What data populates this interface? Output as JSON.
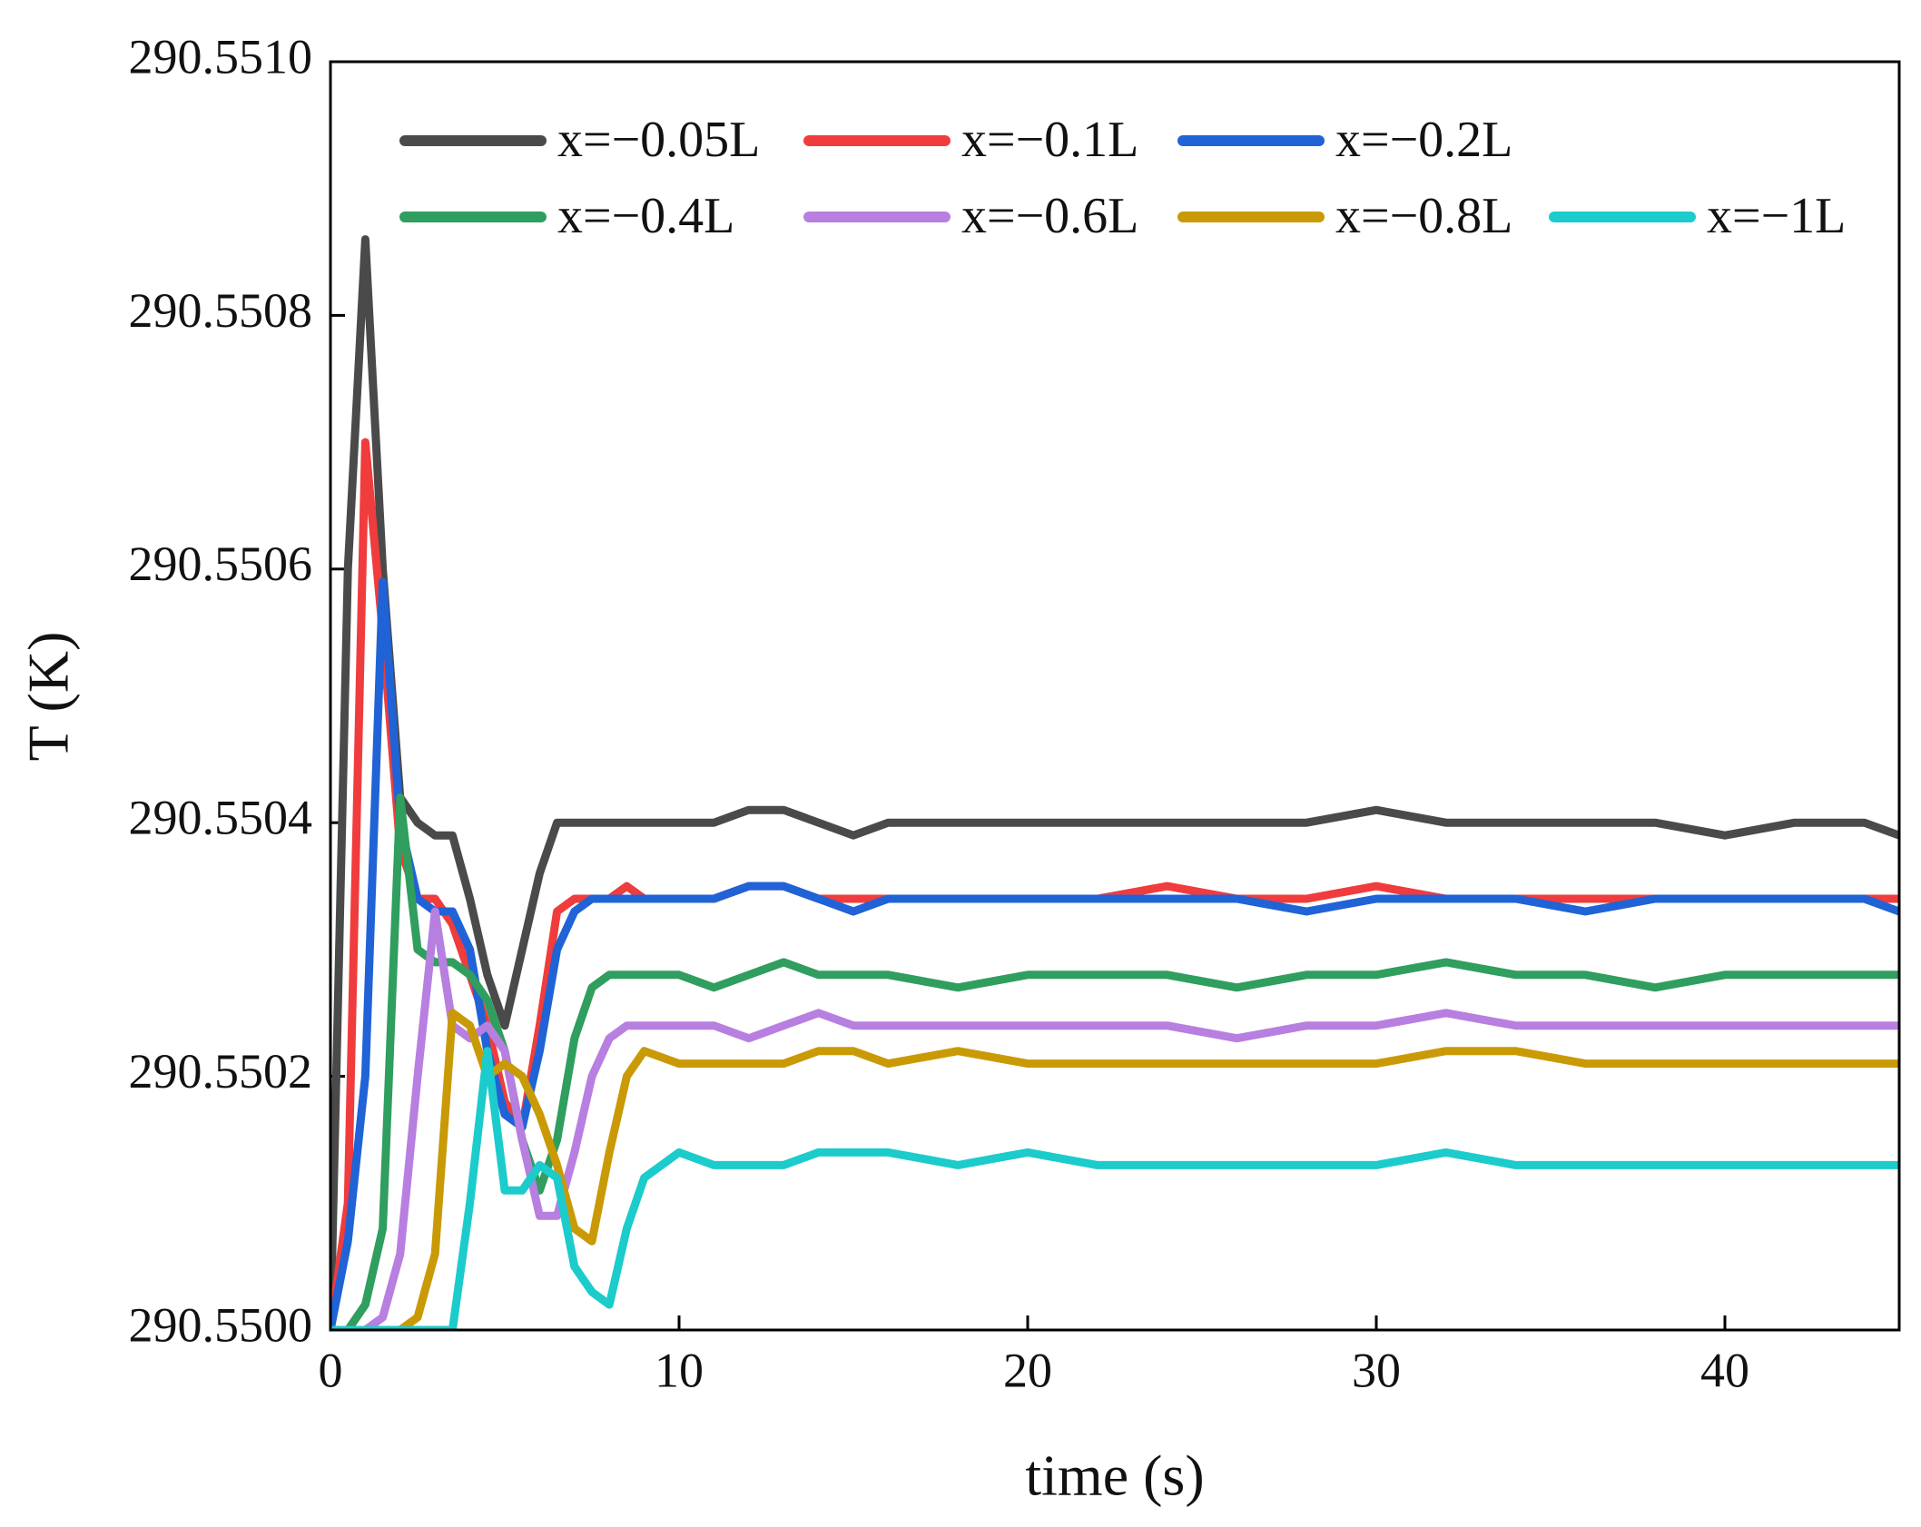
{
  "chart_data": {
    "type": "line",
    "xlabel": "time (s)",
    "ylabel": "T (K)",
    "x": [
      0,
      0.5,
      1,
      1.5,
      2,
      2.5,
      3,
      3.5,
      4,
      4.5,
      5,
      5.5,
      6,
      6.5,
      7,
      7.5,
      8,
      8.5,
      9,
      10,
      11,
      12,
      13,
      14,
      15,
      16,
      18,
      20,
      22,
      24,
      26,
      28,
      30,
      32,
      34,
      36,
      38,
      40,
      42,
      44,
      45
    ],
    "xlim": [
      0,
      45
    ],
    "xticks": [
      0,
      10,
      20,
      30,
      40
    ],
    "ylim": [
      290.55,
      290.551
    ],
    "yticks": [
      {
        "value": 290.55,
        "label": "290.5500"
      },
      {
        "value": 290.5502,
        "label": "290.5502"
      },
      {
        "value": 290.5504,
        "label": "290.5504"
      },
      {
        "value": 290.5506,
        "label": "290.5506"
      },
      {
        "value": 290.5508,
        "label": "290.5508"
      },
      {
        "value": 290.551,
        "label": "290.5510"
      }
    ],
    "legend": "upper left",
    "series": [
      {
        "name": "x=−0.05L",
        "color": "#4a4a4a",
        "values": [
          290.55,
          290.5506,
          290.55086,
          290.5506,
          290.55042,
          290.5504,
          290.55039,
          290.55039,
          290.55034,
          290.55028,
          290.55024,
          290.5503,
          290.55036,
          290.5504,
          290.5504,
          290.5504,
          290.5504,
          290.5504,
          290.5504,
          290.5504,
          290.5504,
          290.55041,
          290.55041,
          290.5504,
          290.55039,
          290.5504,
          290.5504,
          290.5504,
          290.5504,
          290.5504,
          290.5504,
          290.5504,
          290.55041,
          290.5504,
          290.5504,
          290.5504,
          290.5504,
          290.55039,
          290.5504,
          290.5504,
          290.55039
        ]
      },
      {
        "name": "x=−0.1L",
        "color": "#f03c3c",
        "values": [
          290.55,
          290.5501,
          290.5507,
          290.55055,
          290.55038,
          290.55034,
          290.55034,
          290.55032,
          290.55028,
          290.55024,
          290.55018,
          290.55016,
          290.55024,
          290.55033,
          290.55034,
          290.55034,
          290.55034,
          290.55035,
          290.55034,
          290.55034,
          290.55034,
          290.55035,
          290.55035,
          290.55034,
          290.55034,
          290.55034,
          290.55034,
          290.55034,
          290.55034,
          290.55035,
          290.55034,
          290.55034,
          290.55035,
          290.55034,
          290.55034,
          290.55034,
          290.55034,
          290.55034,
          290.55034,
          290.55034,
          290.55034
        ]
      },
      {
        "name": "x=−0.2L",
        "color": "#1f63d6",
        "values": [
          290.55,
          290.55007,
          290.5502,
          290.55059,
          290.5504,
          290.55034,
          290.55033,
          290.55033,
          290.5503,
          290.55022,
          290.55017,
          290.55016,
          290.55022,
          290.5503,
          290.55033,
          290.55034,
          290.55034,
          290.55034,
          290.55034,
          290.55034,
          290.55034,
          290.55035,
          290.55035,
          290.55034,
          290.55033,
          290.55034,
          290.55034,
          290.55034,
          290.55034,
          290.55034,
          290.55034,
          290.55033,
          290.55034,
          290.55034,
          290.55034,
          290.55033,
          290.55034,
          290.55034,
          290.55034,
          290.55034,
          290.55033
        ]
      },
      {
        "name": "x=−0.4L",
        "color": "#2f9e5e",
        "values": [
          290.55,
          290.55,
          290.55002,
          290.55008,
          290.55042,
          290.5503,
          290.55029,
          290.55029,
          290.55028,
          290.55026,
          290.55022,
          290.55015,
          290.55011,
          290.55015,
          290.55023,
          290.55027,
          290.55028,
          290.55028,
          290.55028,
          290.55028,
          290.55027,
          290.55028,
          290.55029,
          290.55028,
          290.55028,
          290.55028,
          290.55027,
          290.55028,
          290.55028,
          290.55028,
          290.55027,
          290.55028,
          290.55028,
          290.55029,
          290.55028,
          290.55028,
          290.55027,
          290.55028,
          290.55028,
          290.55028,
          290.55028
        ]
      },
      {
        "name": "x=−0.6L",
        "color": "#b77fe0",
        "values": [
          290.55,
          290.55,
          290.55,
          290.55001,
          290.55006,
          290.5502,
          290.55033,
          290.55024,
          290.55023,
          290.55024,
          290.55022,
          290.55015,
          290.55009,
          290.55009,
          290.55014,
          290.5502,
          290.55023,
          290.55024,
          290.55024,
          290.55024,
          290.55024,
          290.55023,
          290.55024,
          290.55025,
          290.55024,
          290.55024,
          290.55024,
          290.55024,
          290.55024,
          290.55024,
          290.55023,
          290.55024,
          290.55024,
          290.55025,
          290.55024,
          290.55024,
          290.55024,
          290.55024,
          290.55024,
          290.55024,
          290.55024
        ]
      },
      {
        "name": "x=−0.8L",
        "color": "#c99a06",
        "values": [
          290.55,
          290.55,
          290.55,
          290.55,
          290.55,
          290.55001,
          290.55006,
          290.55025,
          290.55024,
          290.5502,
          290.55021,
          290.5502,
          290.55017,
          290.55013,
          290.55008,
          290.55007,
          290.55014,
          290.5502,
          290.55022,
          290.55021,
          290.55021,
          290.55021,
          290.55021,
          290.55022,
          290.55022,
          290.55021,
          290.55022,
          290.55021,
          290.55021,
          290.55021,
          290.55021,
          290.55021,
          290.55021,
          290.55022,
          290.55022,
          290.55021,
          290.55021,
          290.55021,
          290.55021,
          290.55021,
          290.55021
        ]
      },
      {
        "name": "x=−1L",
        "color": "#1ccbcb",
        "values": [
          290.55,
          290.55,
          290.55,
          290.55,
          290.55,
          290.55,
          290.55,
          290.55,
          290.5501,
          290.55022,
          290.55011,
          290.55011,
          290.55013,
          290.55012,
          290.55005,
          290.55003,
          290.55002,
          290.55008,
          290.55012,
          290.55014,
          290.55013,
          290.55013,
          290.55013,
          290.55014,
          290.55014,
          290.55014,
          290.55013,
          290.55014,
          290.55013,
          290.55013,
          290.55013,
          290.55013,
          290.55013,
          290.55014,
          290.55013,
          290.55013,
          290.55013,
          290.55013,
          290.55013,
          290.55013,
          290.55013
        ]
      }
    ]
  }
}
